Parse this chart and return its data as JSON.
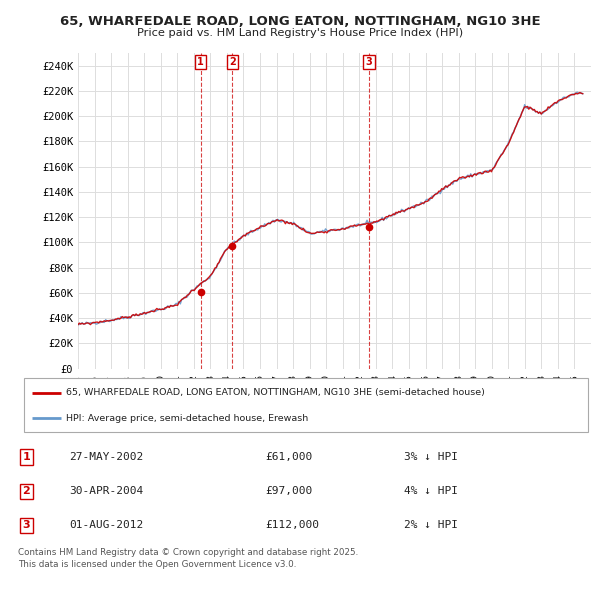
{
  "title": "65, WHARFEDALE ROAD, LONG EATON, NOTTINGHAM, NG10 3HE",
  "subtitle": "Price paid vs. HM Land Registry's House Price Index (HPI)",
  "ylabel_ticks": [
    "£0",
    "£20K",
    "£40K",
    "£60K",
    "£80K",
    "£100K",
    "£120K",
    "£140K",
    "£160K",
    "£180K",
    "£200K",
    "£220K",
    "£240K"
  ],
  "ytick_values": [
    0,
    20000,
    40000,
    60000,
    80000,
    100000,
    120000,
    140000,
    160000,
    180000,
    200000,
    220000,
    240000
  ],
  "ylim": [
    0,
    250000
  ],
  "xlim_start": 1995.0,
  "xlim_end": 2026.0,
  "transactions": [
    {
      "num": 1,
      "date": "27-MAY-2002",
      "price": 61000,
      "hpi_diff": "3% ↓ HPI",
      "x": 2002.41
    },
    {
      "num": 2,
      "date": "30-APR-2004",
      "price": 97000,
      "hpi_diff": "4% ↓ HPI",
      "x": 2004.33
    },
    {
      "num": 3,
      "date": "01-AUG-2012",
      "price": 112000,
      "hpi_diff": "2% ↓ HPI",
      "x": 2012.58
    }
  ],
  "legend_line1": "65, WHARFEDALE ROAD, LONG EATON, NOTTINGHAM, NG10 3HE (semi-detached house)",
  "legend_line2": "HPI: Average price, semi-detached house, Erewash",
  "footer": "Contains HM Land Registry data © Crown copyright and database right 2025.\nThis data is licensed under the Open Government Licence v3.0.",
  "price_line_color": "#cc0000",
  "hpi_line_color": "#6699cc",
  "background_color": "#ffffff",
  "grid_color": "#dddddd",
  "hpi_key_years": [
    1995,
    1996,
    1997,
    1998,
    1999,
    2000,
    2001,
    2002,
    2003,
    2004,
    2005,
    2006,
    2007,
    2008,
    2009,
    2010,
    2011,
    2012,
    2013,
    2014,
    2015,
    2016,
    2017,
    2018,
    2019,
    2020,
    2021,
    2022,
    2023,
    2024,
    2025
  ],
  "hpi_key_values": [
    35000,
    36500,
    38500,
    41000,
    44000,
    47000,
    51000,
    63000,
    73000,
    95000,
    105000,
    112000,
    118000,
    115000,
    107000,
    109000,
    111000,
    114000,
    116000,
    122000,
    127000,
    132000,
    142000,
    150000,
    154000,
    157000,
    178000,
    208000,
    202000,
    212000,
    218000
  ]
}
